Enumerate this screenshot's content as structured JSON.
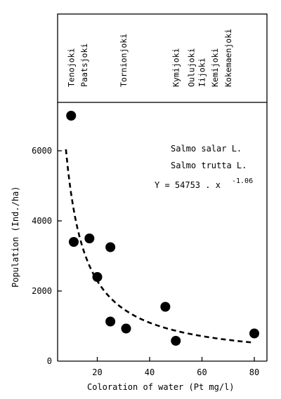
{
  "chart_data": {
    "type": "scatter",
    "xlabel": "Coloration of water (Pt mg/l)",
    "ylabel": "Population (Ind./ha)",
    "xlim": [
      0,
      80
    ],
    "ylim": [
      0,
      7500
    ],
    "x_ticks": [
      0,
      20,
      40,
      60,
      80
    ],
    "y_ticks": [
      0,
      2000,
      4000,
      6000
    ],
    "x_tick_labels": [
      "",
      "20",
      "40",
      "60",
      "80"
    ],
    "y_tick_labels": [
      "0",
      "2000",
      "4000",
      "6000"
    ],
    "grid": false,
    "rivers": [
      {
        "name": "Tenojoki",
        "x": 10
      },
      {
        "name": "Paatsjoki",
        "x": 15
      },
      {
        "name": "Tornionjoki",
        "x": 30
      },
      {
        "name": "Kymijoki",
        "x": 50
      },
      {
        "name": "Oulujoki",
        "x": 56
      },
      {
        "name": "Iijoki",
        "x": 60
      },
      {
        "name": "Kemijoki",
        "x": 65
      },
      {
        "name": "Kokemaenjoki",
        "x": 70
      }
    ],
    "series": [
      {
        "points": [
          {
            "x": 10,
            "y": 7000
          },
          {
            "x": 11,
            "y": 3400
          },
          {
            "x": 17,
            "y": 3500
          },
          {
            "x": 20,
            "y": 2400
          },
          {
            "x": 25,
            "y": 3250
          },
          {
            "x": 25,
            "y": 1130
          },
          {
            "x": 31,
            "y": 930
          },
          {
            "x": 46,
            "y": 1550
          },
          {
            "x": 50,
            "y": 580
          },
          {
            "x": 80,
            "y": 790
          }
        ]
      }
    ],
    "fit": {
      "a": 54753,
      "b": -1.06,
      "x_range": [
        8,
        79
      ],
      "style": "dashed"
    },
    "annotations": {
      "species_1": "Salmo salar L.",
      "species_2": "Salmo trutta L.",
      "equation_main": "Y = 54753 . x",
      "equation_exp": "-1.06"
    }
  }
}
